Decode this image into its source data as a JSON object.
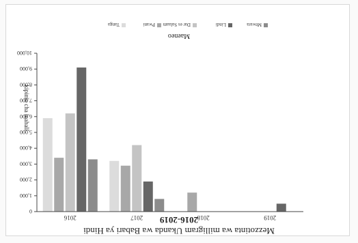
{
  "chart_data": {
    "type": "bar",
    "orientation": "upside-down (image rotated 180°)",
    "title_line1": "Mezzotinta wa milligram Ukanda wa Babari ya Hindi",
    "title_line2": "2016-2019",
    "ylabel": "kipimo cha mahali",
    "legend_title": "Maeneo",
    "legend_placement": "top",
    "categories": [
      "2016",
      "2017",
      "2018",
      "2019"
    ],
    "y_ticks": [
      "0",
      "1,000",
      "2,000",
      "3,000",
      "4,000",
      "5,000",
      "6,000",
      "7,000",
      "8,000",
      "9,000",
      "10,000"
    ],
    "ylim": [
      0,
      10000
    ],
    "series": [
      {
        "name": "Tanga",
        "color": "#dcdcdc",
        "values": [
          5900,
          3200,
          0,
          0
        ]
      },
      {
        "name": "Pwani",
        "color": "#a8a8a8",
        "values": [
          3400,
          2900,
          1200,
          0
        ]
      },
      {
        "name": "Dar es Salaam",
        "color": "#c4c4c4",
        "values": [
          6200,
          4200,
          0,
          0
        ]
      },
      {
        "name": "Lindi",
        "color": "#666666",
        "values": [
          9100,
          1900,
          0,
          500
        ]
      },
      {
        "name": "Mtwara",
        "color": "#8c8c8c",
        "values": [
          3300,
          800,
          0,
          0
        ]
      }
    ]
  }
}
